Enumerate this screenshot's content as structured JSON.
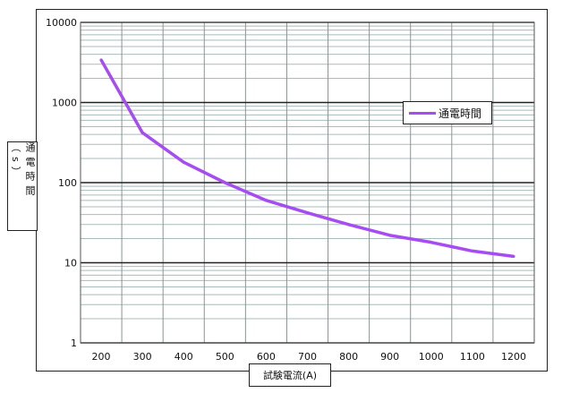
{
  "chart_data": {
    "type": "line",
    "title": "",
    "xlabel": "試験電流(A)",
    "ylabel": "通電時間（s）",
    "x_scale": "category",
    "y_scale": "log",
    "ylim": [
      1,
      10000
    ],
    "grid": true,
    "legend_placement": "right",
    "categories": [
      "200",
      "300",
      "400",
      "500",
      "600",
      "700",
      "800",
      "900",
      "1000",
      "1100",
      "1200"
    ],
    "y_ticks": [
      "1",
      "10",
      "100",
      "1000",
      "10000"
    ],
    "series": [
      {
        "name": "通電時間",
        "color": "#a64cf2",
        "values": [
          3400,
          420,
          180,
          100,
          60,
          42,
          30,
          22,
          18,
          14,
          12
        ]
      }
    ]
  }
}
